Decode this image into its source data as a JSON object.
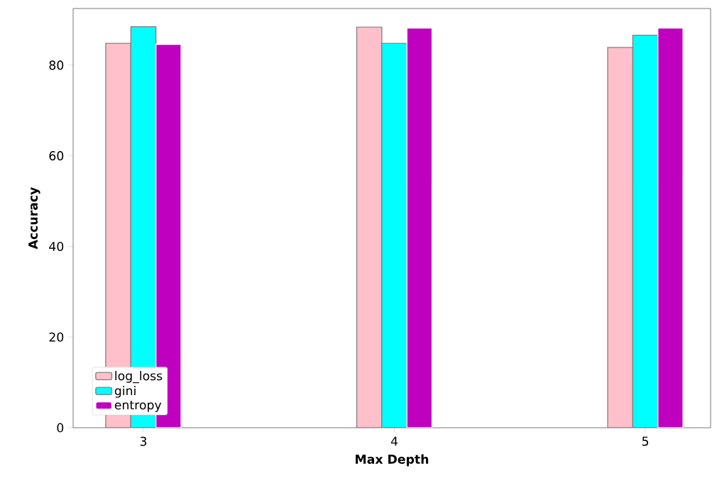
{
  "chart_data": {
    "type": "bar",
    "xlabel": "Max Depth",
    "ylabel": "Accuracy",
    "categories": [
      "3",
      "4",
      "5"
    ],
    "series": [
      {
        "name": "log_loss",
        "color": "#ffc0cb",
        "values": [
          84.8,
          88.4,
          83.9
        ]
      },
      {
        "name": "gini",
        "color": "#00ffff",
        "values": [
          88.5,
          84.8,
          86.6
        ]
      },
      {
        "name": "entropy",
        "color": "#bf00bf",
        "values": [
          84.6,
          88.2,
          88.2
        ]
      }
    ],
    "ylim": [
      0,
      92.5
    ],
    "yticks": [
      0,
      20,
      40,
      60,
      80
    ],
    "legend": "bottom left",
    "grid": false
  }
}
